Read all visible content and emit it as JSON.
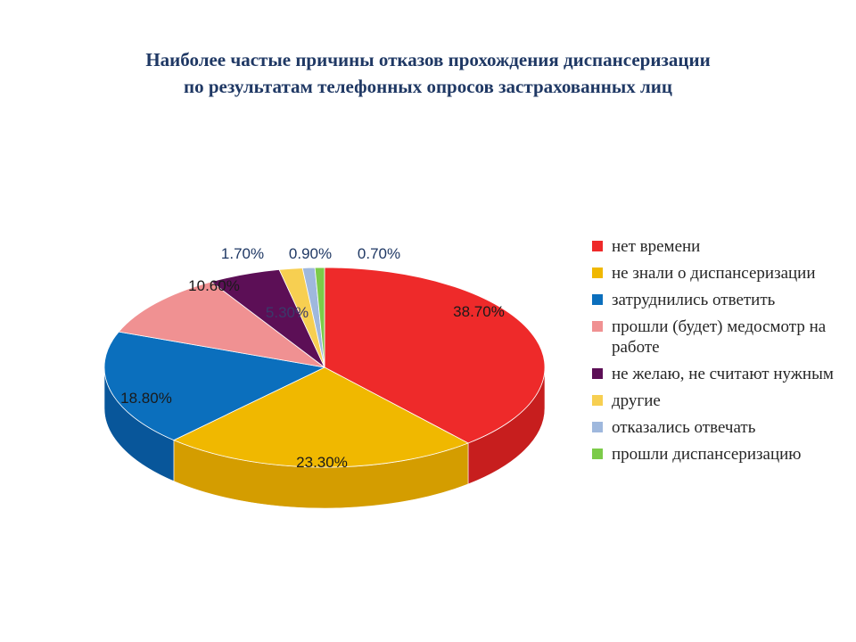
{
  "title": {
    "line1": "Наиболее частые причины отказов прохождения диспансеризации",
    "line2": "по результатам телефонных опросов застрахованных лиц"
  },
  "chart_data": {
    "type": "pie",
    "variant": "3d",
    "legend_position": "right",
    "labels": [
      "нет времени",
      "не знали о диспансеризации",
      "затруднились ответить",
      "прошли (будет) медосмотр на работе",
      "не желаю, не считают нужным",
      "другие",
      "отказались отвечать",
      "прошли диспансеризацию"
    ],
    "values": [
      38.7,
      23.3,
      18.8,
      10.6,
      5.3,
      1.7,
      0.9,
      0.7
    ],
    "value_labels": [
      "38.70%",
      "23.30%",
      "18.80%",
      "10.60%",
      "5.30%",
      "1.70%",
      "0.90%",
      "0.70%"
    ],
    "colors": [
      "#ee2a2a",
      "#f0b800",
      "#0b6fbd",
      "#f09192",
      "#5c0f56",
      "#f7cf51",
      "#9fb8dd",
      "#7ccb49"
    ],
    "side_colors": [
      "#c71e1e",
      "#d49d00",
      "#08569a",
      "#cf7273",
      "#3f0a3b",
      "#d6b03c",
      "#7f98bd",
      "#5ea633"
    ]
  }
}
